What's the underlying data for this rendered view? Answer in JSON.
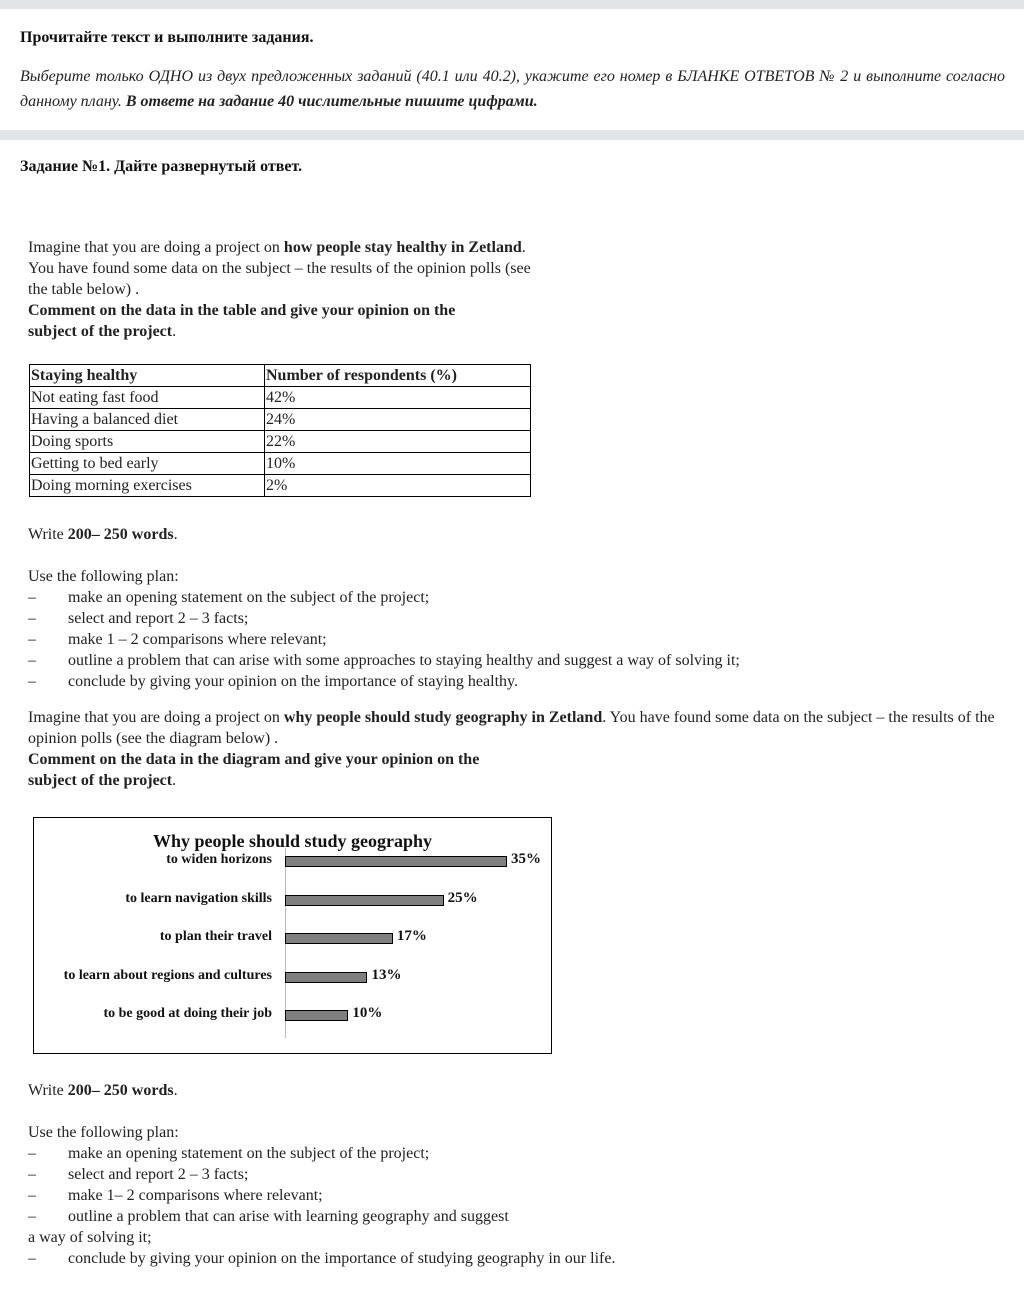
{
  "header": {
    "instruction": "Прочитайте текст и выполните задания.",
    "note_italic": "Выберите только ОДНО из двух предложенных заданий (40.1 или 40.2), укажите его номер в БЛАНКЕ ОТВЕТОВ  № 2 и выполните согласно данному плану.",
    "note_bold": "В ответе на задание 40 числительные пишите цифрами."
  },
  "task_title": "Задание №1. Дайте развернутый ответ.",
  "task1": {
    "intro_1": "Imagine that you are doing a project on ",
    "intro_topic": "how people stay healthy in Zetland",
    "intro_2": ". You have found some data on the subject – the results of the opinion polls (see the table below) .",
    "comment_bold": "Comment on the data in the table and give your opinion on the subject of the project",
    "comment_end": ".",
    "table": {
      "headers": [
        "Staying healthy",
        "Number of respondents (%)"
      ],
      "rows": [
        [
          "Not eating fast food",
          "42%"
        ],
        [
          "Having a balanced diet",
          "24%"
        ],
        [
          "Doing sports",
          "22%"
        ],
        [
          "Getting to bed early",
          "10%"
        ],
        [
          "Doing morning exercises",
          "2%"
        ]
      ]
    },
    "write_1": "Write ",
    "write_bold": "200– 250 words",
    "write_2": ".",
    "plan_title": "Use the following plan:",
    "plan": [
      "make an opening statement on the subject of the project;",
      "select and report 2 – 3 facts;",
      "make 1 – 2 comparisons where relevant;",
      "outline a problem that can arise with  some approaches to staying healthy  and suggest a way of solving it;",
      "conclude by giving your opinion on the importance of staying healthy."
    ]
  },
  "task2": {
    "intro_1": "Imagine that you are doing a project on ",
    "intro_topic": "why people should study geography in Zetland",
    "intro_2": ". You have found some data on the subject – the results of the opinion polls (see the diagram below) .",
    "comment_bold": "Comment on the data in the diagram and give your opinion on the subject of the project",
    "comment_end": ".",
    "write_1": "Write ",
    "write_bold": "200– 250 words",
    "write_2": ".",
    "plan_title": "Use the following plan:",
    "plan": [
      "make an opening statement on the subject of the project;",
      "select and report 2 – 3 facts;",
      "make 1– 2 comparisons where relevant;",
      "outline a problem that can arise with learning geography and suggest",
      "conclude by giving your opinion on the importance of studying geography in our life."
    ],
    "plan_continuation": "a way of solving it;"
  },
  "chart_data": {
    "type": "bar",
    "orientation": "horizontal",
    "title": "Why people should study geography",
    "categories": [
      "to widen horizons",
      "to learn navigation skills",
      "to plan their travel",
      "to learn about regions and cultures",
      "to be good at doing their job"
    ],
    "values": [
      35,
      25,
      17,
      13,
      10
    ],
    "data_labels": [
      "35%",
      "25%",
      "17%",
      "13%",
      "10%"
    ],
    "bar_color": "#7f7f7f",
    "grid": false,
    "legend": "none"
  },
  "dash": "–"
}
